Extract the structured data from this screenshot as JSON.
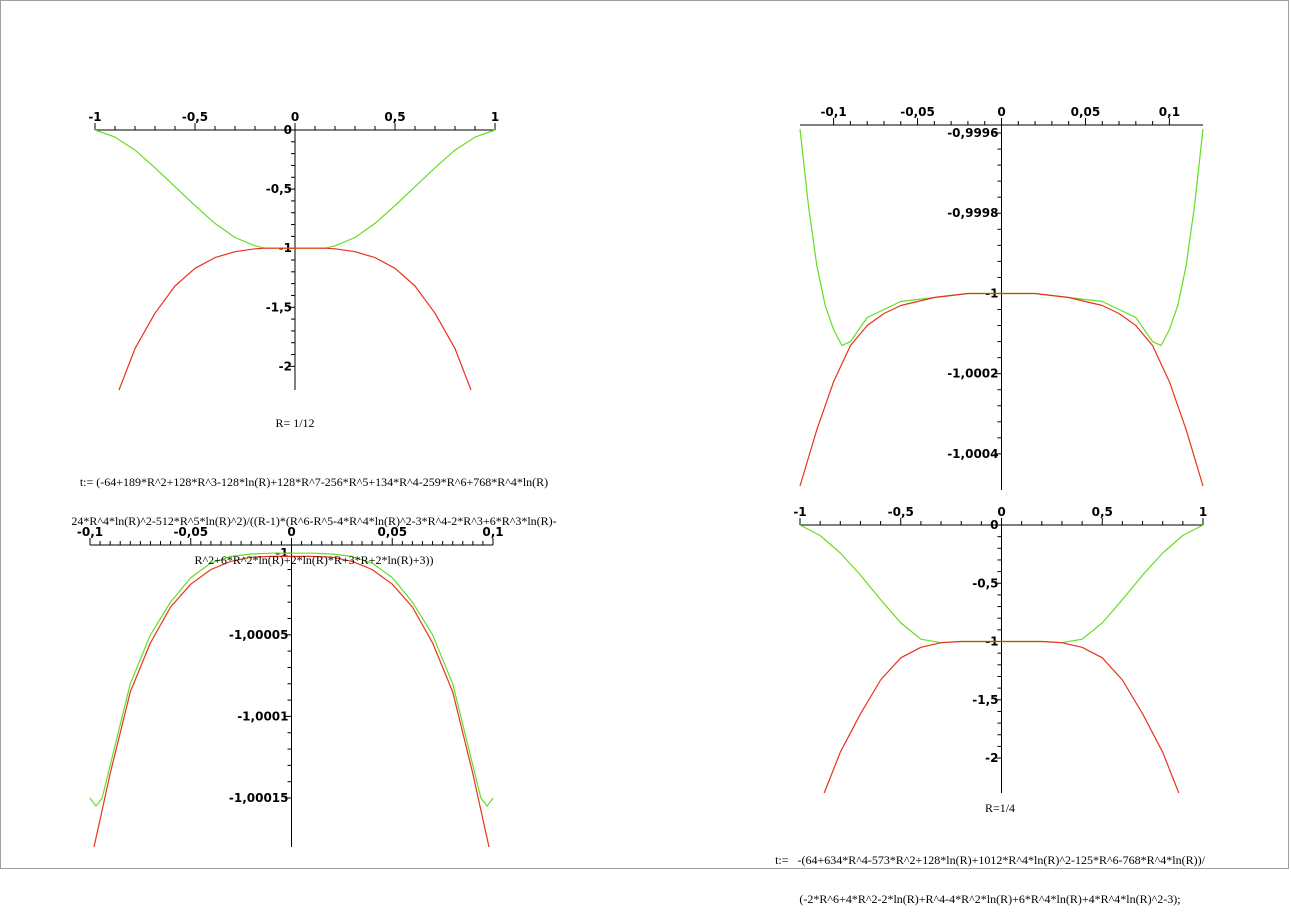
{
  "colors": {
    "curve_a": "#e8321e",
    "curve_b": "#66dd22",
    "axis": "#000000"
  },
  "captions": {
    "r1": "R= 1/12",
    "t1": [
      "t:= (-64+189*R^2+128*R^3-128*ln(R)+128*R^7-256*R^5+134*R^4-259*R^6+768*R^4*ln(R)",
      "24*R^4*ln(R)^2-512*R^5*ln(R)^2)/((R-1)*(R^6-R^5-4*R^4*ln(R)^2-3*R^4-2*R^3+6*R^3*ln(R)-",
      "R^2+6*R^2*ln(R)+2*ln(R)*R+3*R+2*ln(R)+3))"
    ],
    "r2": "R=1/4",
    "t2": [
      "t:=   -(64+634*R^4-573*R^2+128*ln(R)+1012*R^4*ln(R)^2-125*R^6-768*R^4*ln(R))/",
      "(-2*R^6+4*R^2-2*ln(R)+R^4-4*R^2*ln(R)+6*R^4*ln(R)+4*R^4*ln(R)^2-3);"
    ]
  },
  "chart_data": [
    {
      "type": "line",
      "title": "",
      "xlim": [
        -1,
        1
      ],
      "ylim": [
        -2.2,
        0
      ],
      "x_ticks": [
        "-1",
        "-0,5",
        "0",
        "0,5",
        "1"
      ],
      "y_ticks": [
        "0",
        "-0,5",
        "-1",
        "-1,5",
        "-2"
      ],
      "series": [
        {
          "color": "#66dd22",
          "x": [
            -1,
            -0.9,
            -0.8,
            -0.7,
            -0.6,
            -0.5,
            -0.4,
            -0.3,
            -0.2,
            -0.15,
            -0.1,
            0,
            0.1,
            0.15,
            0.2,
            0.3,
            0.4,
            0.5,
            0.6,
            0.7,
            0.8,
            0.9,
            1
          ],
          "y": [
            0,
            -0.06,
            -0.17,
            -0.32,
            -0.48,
            -0.64,
            -0.79,
            -0.91,
            -0.98,
            -1.0,
            -1.0,
            -1.0,
            -1.0,
            -1.0,
            -0.98,
            -0.91,
            -0.79,
            -0.64,
            -0.48,
            -0.32,
            -0.17,
            -0.06,
            0
          ]
        },
        {
          "color": "#e8321e",
          "x": [
            -0.88,
            -0.8,
            -0.7,
            -0.6,
            -0.5,
            -0.4,
            -0.3,
            -0.2,
            -0.15,
            -0.1,
            0,
            0.1,
            0.15,
            0.2,
            0.3,
            0.4,
            0.5,
            0.6,
            0.7,
            0.8,
            0.88
          ],
          "y": [
            -2.2,
            -1.85,
            -1.55,
            -1.32,
            -1.17,
            -1.08,
            -1.03,
            -1.005,
            -1.0,
            -1.0,
            -1.0,
            -1.0,
            -1.0,
            -1.005,
            -1.03,
            -1.08,
            -1.17,
            -1.32,
            -1.55,
            -1.85,
            -2.2
          ]
        }
      ]
    },
    {
      "type": "line",
      "title": "",
      "xlim": [
        -0.12,
        0.12
      ],
      "ylim": [
        -1.00049,
        -0.99958
      ],
      "x_ticks": [
        "-0,1",
        "-0,05",
        "0",
        "0,05",
        "0,1"
      ],
      "y_ticks": [
        "-0,9996",
        "-0,9998",
        "-1",
        "-1,0002",
        "-1,0004"
      ],
      "series": [
        {
          "color": "#66dd22",
          "x": [
            -0.12,
            -0.115,
            -0.11,
            -0.105,
            -0.1,
            -0.095,
            -0.09,
            -0.08,
            -0.06,
            -0.04,
            -0.02,
            0,
            0.02,
            0.04,
            0.06,
            0.08,
            0.09,
            0.095,
            0.1,
            0.105,
            0.11,
            0.115,
            0.12
          ],
          "y": [
            -0.99959,
            -0.99978,
            -0.99993,
            -1.00003,
            -1.00009,
            -1.00013,
            -1.00012,
            -1.00006,
            -1.00002,
            -1.00001,
            -1.0,
            -1.0,
            -1.0,
            -1.00001,
            -1.00002,
            -1.00006,
            -1.00012,
            -1.00013,
            -1.00009,
            -1.00003,
            -0.99993,
            -0.99978,
            -0.99959
          ]
        },
        {
          "color": "#e8321e",
          "x": [
            -0.12,
            -0.11,
            -0.1,
            -0.09,
            -0.08,
            -0.07,
            -0.06,
            -0.04,
            -0.02,
            0,
            0.02,
            0.04,
            0.06,
            0.07,
            0.08,
            0.09,
            0.1,
            0.11,
            0.12
          ],
          "y": [
            -1.00048,
            -1.00034,
            -1.00022,
            -1.00013,
            -1.00008,
            -1.00005,
            -1.00003,
            -1.00001,
            -1.0,
            -1.0,
            -1.0,
            -1.00001,
            -1.00003,
            -1.00005,
            -1.00008,
            -1.00013,
            -1.00022,
            -1.00034,
            -1.00048
          ]
        }
      ]
    },
    {
      "type": "line",
      "title": "",
      "xlim": [
        -0.1,
        0.1
      ],
      "ylim": [
        -1.00018,
        -0.999995
      ],
      "x_ticks": [
        "-0,1",
        "-0,05",
        "0",
        "0,05",
        "0,1"
      ],
      "y_ticks": [
        "-1",
        "-1,00005",
        "-1,0001",
        "-1,00015"
      ],
      "series": [
        {
          "color": "#66dd22",
          "x": [
            -0.1,
            -0.097,
            -0.094,
            -0.09,
            -0.085,
            -0.08,
            -0.07,
            -0.06,
            -0.05,
            -0.04,
            -0.03,
            -0.02,
            -0.01,
            0,
            0.01,
            0.02,
            0.03,
            0.04,
            0.05,
            0.06,
            0.07,
            0.08,
            0.085,
            0.09,
            0.094,
            0.097,
            0.1
          ],
          "y": [
            -1.00015,
            -1.000155,
            -1.00015,
            -1.00013,
            -1.000105,
            -1.00008,
            -1.00005,
            -1.00003,
            -1.000015,
            -1.000006,
            -1.000002,
            -1.0000005,
            -1.0,
            -1.0,
            -1.0,
            -1.0000005,
            -1.000002,
            -1.000006,
            -1.000015,
            -1.00003,
            -1.00005,
            -1.00008,
            -1.000105,
            -1.00013,
            -1.00015,
            -1.000155,
            -1.00015
          ]
        },
        {
          "color": "#e8321e",
          "x": [
            -0.098,
            -0.09,
            -0.08,
            -0.07,
            -0.06,
            -0.05,
            -0.04,
            -0.03,
            -0.02,
            -0.01,
            0,
            0.01,
            0.02,
            0.03,
            0.04,
            0.05,
            0.06,
            0.07,
            0.08,
            0.09,
            0.098
          ],
          "y": [
            -1.00018,
            -1.000135,
            -1.000085,
            -1.000055,
            -1.000033,
            -1.000019,
            -1.00001,
            -1.000005,
            -1.0000025,
            -1.000002,
            -1.000002,
            -1.000002,
            -1.0000025,
            -1.000005,
            -1.00001,
            -1.000019,
            -1.000033,
            -1.000055,
            -1.000085,
            -1.000135,
            -1.00018
          ]
        }
      ]
    },
    {
      "type": "line",
      "title": "",
      "xlim": [
        -1,
        1
      ],
      "ylim": [
        -2.3,
        0
      ],
      "x_ticks": [
        "-1",
        "-0,5",
        "0",
        "0,5",
        "1"
      ],
      "y_ticks": [
        "0",
        "-0,5",
        "-1",
        "-1,5",
        "-2"
      ],
      "series": [
        {
          "color": "#66dd22",
          "x": [
            -1,
            -0.9,
            -0.8,
            -0.7,
            -0.6,
            -0.5,
            -0.4,
            -0.3,
            -0.2,
            -0.1,
            0,
            0.1,
            0.2,
            0.3,
            0.4,
            0.5,
            0.6,
            0.7,
            0.8,
            0.9,
            1
          ],
          "y": [
            0,
            -0.09,
            -0.24,
            -0.43,
            -0.64,
            -0.84,
            -0.98,
            -1.01,
            -1.0,
            -1.0,
            -1.0,
            -1.0,
            -1.0,
            -1.01,
            -0.98,
            -0.84,
            -0.64,
            -0.43,
            -0.24,
            -0.09,
            0
          ]
        },
        {
          "color": "#e8321e",
          "x": [
            -0.88,
            -0.8,
            -0.7,
            -0.6,
            -0.5,
            -0.4,
            -0.3,
            -0.2,
            -0.1,
            0,
            0.1,
            0.2,
            0.3,
            0.4,
            0.5,
            0.6,
            0.7,
            0.8,
            0.88
          ],
          "y": [
            -2.3,
            -1.95,
            -1.62,
            -1.33,
            -1.14,
            -1.05,
            -1.01,
            -1.0,
            -1.0,
            -1.0,
            -1.0,
            -1.0,
            -1.01,
            -1.05,
            -1.14,
            -1.33,
            -1.62,
            -1.95,
            -2.3
          ]
        }
      ]
    }
  ]
}
